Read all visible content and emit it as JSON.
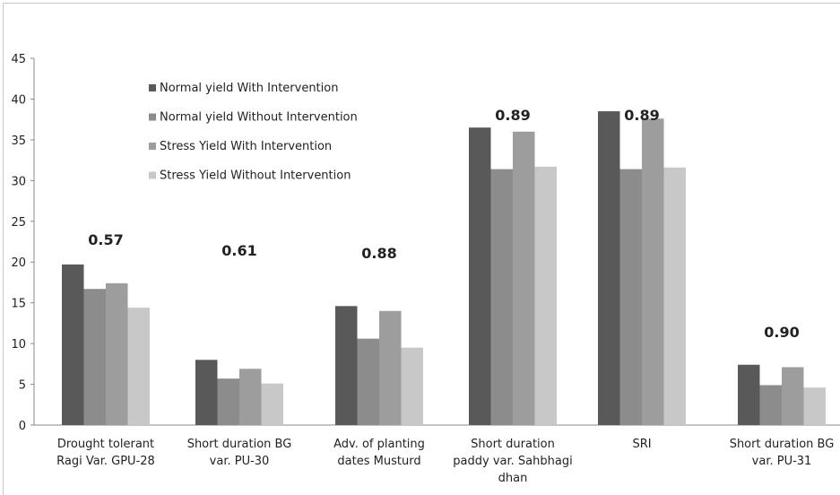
{
  "chart_data": {
    "type": "bar",
    "title": "",
    "xlabel": "",
    "ylabel": "",
    "ylim": [
      0,
      45
    ],
    "yticks": [
      0,
      5,
      10,
      15,
      20,
      25,
      30,
      35,
      40,
      45
    ],
    "grid": false,
    "legend_position": "top-left inside",
    "categories": [
      [
        "Drought tolerant",
        "Ragi Var. GPU-28"
      ],
      [
        "Short duration BG",
        "var. PU-30"
      ],
      [
        "Adv. of planting",
        "dates Musturd"
      ],
      [
        "Short duration",
        "paddy var. Sahbhagi",
        "dhan"
      ],
      [
        "SRI"
      ],
      [
        "Short duration BG",
        "var. PU-31"
      ]
    ],
    "series": [
      {
        "name": "Normal yield With Intervention",
        "color": "#595959",
        "values": [
          19.7,
          8.0,
          14.6,
          36.5,
          38.5,
          7.4
        ]
      },
      {
        "name": "Normal yield Without Intervention",
        "color": "#8c8c8c",
        "values": [
          16.7,
          5.7,
          10.6,
          31.4,
          31.4,
          4.9
        ]
      },
      {
        "name": "Stress Yield With Intervention",
        "color": "#9d9d9d",
        "values": [
          17.4,
          6.9,
          14.0,
          36.0,
          37.6,
          7.1
        ]
      },
      {
        "name": "Stress Yield Without Intervention",
        "color": "#c8c8c8",
        "values": [
          14.4,
          5.1,
          9.5,
          31.7,
          31.6,
          4.6
        ]
      }
    ],
    "annotations": [
      "0.57",
      "0.61",
      "0.88",
      "0.89",
      "0.89",
      "0.90"
    ]
  }
}
